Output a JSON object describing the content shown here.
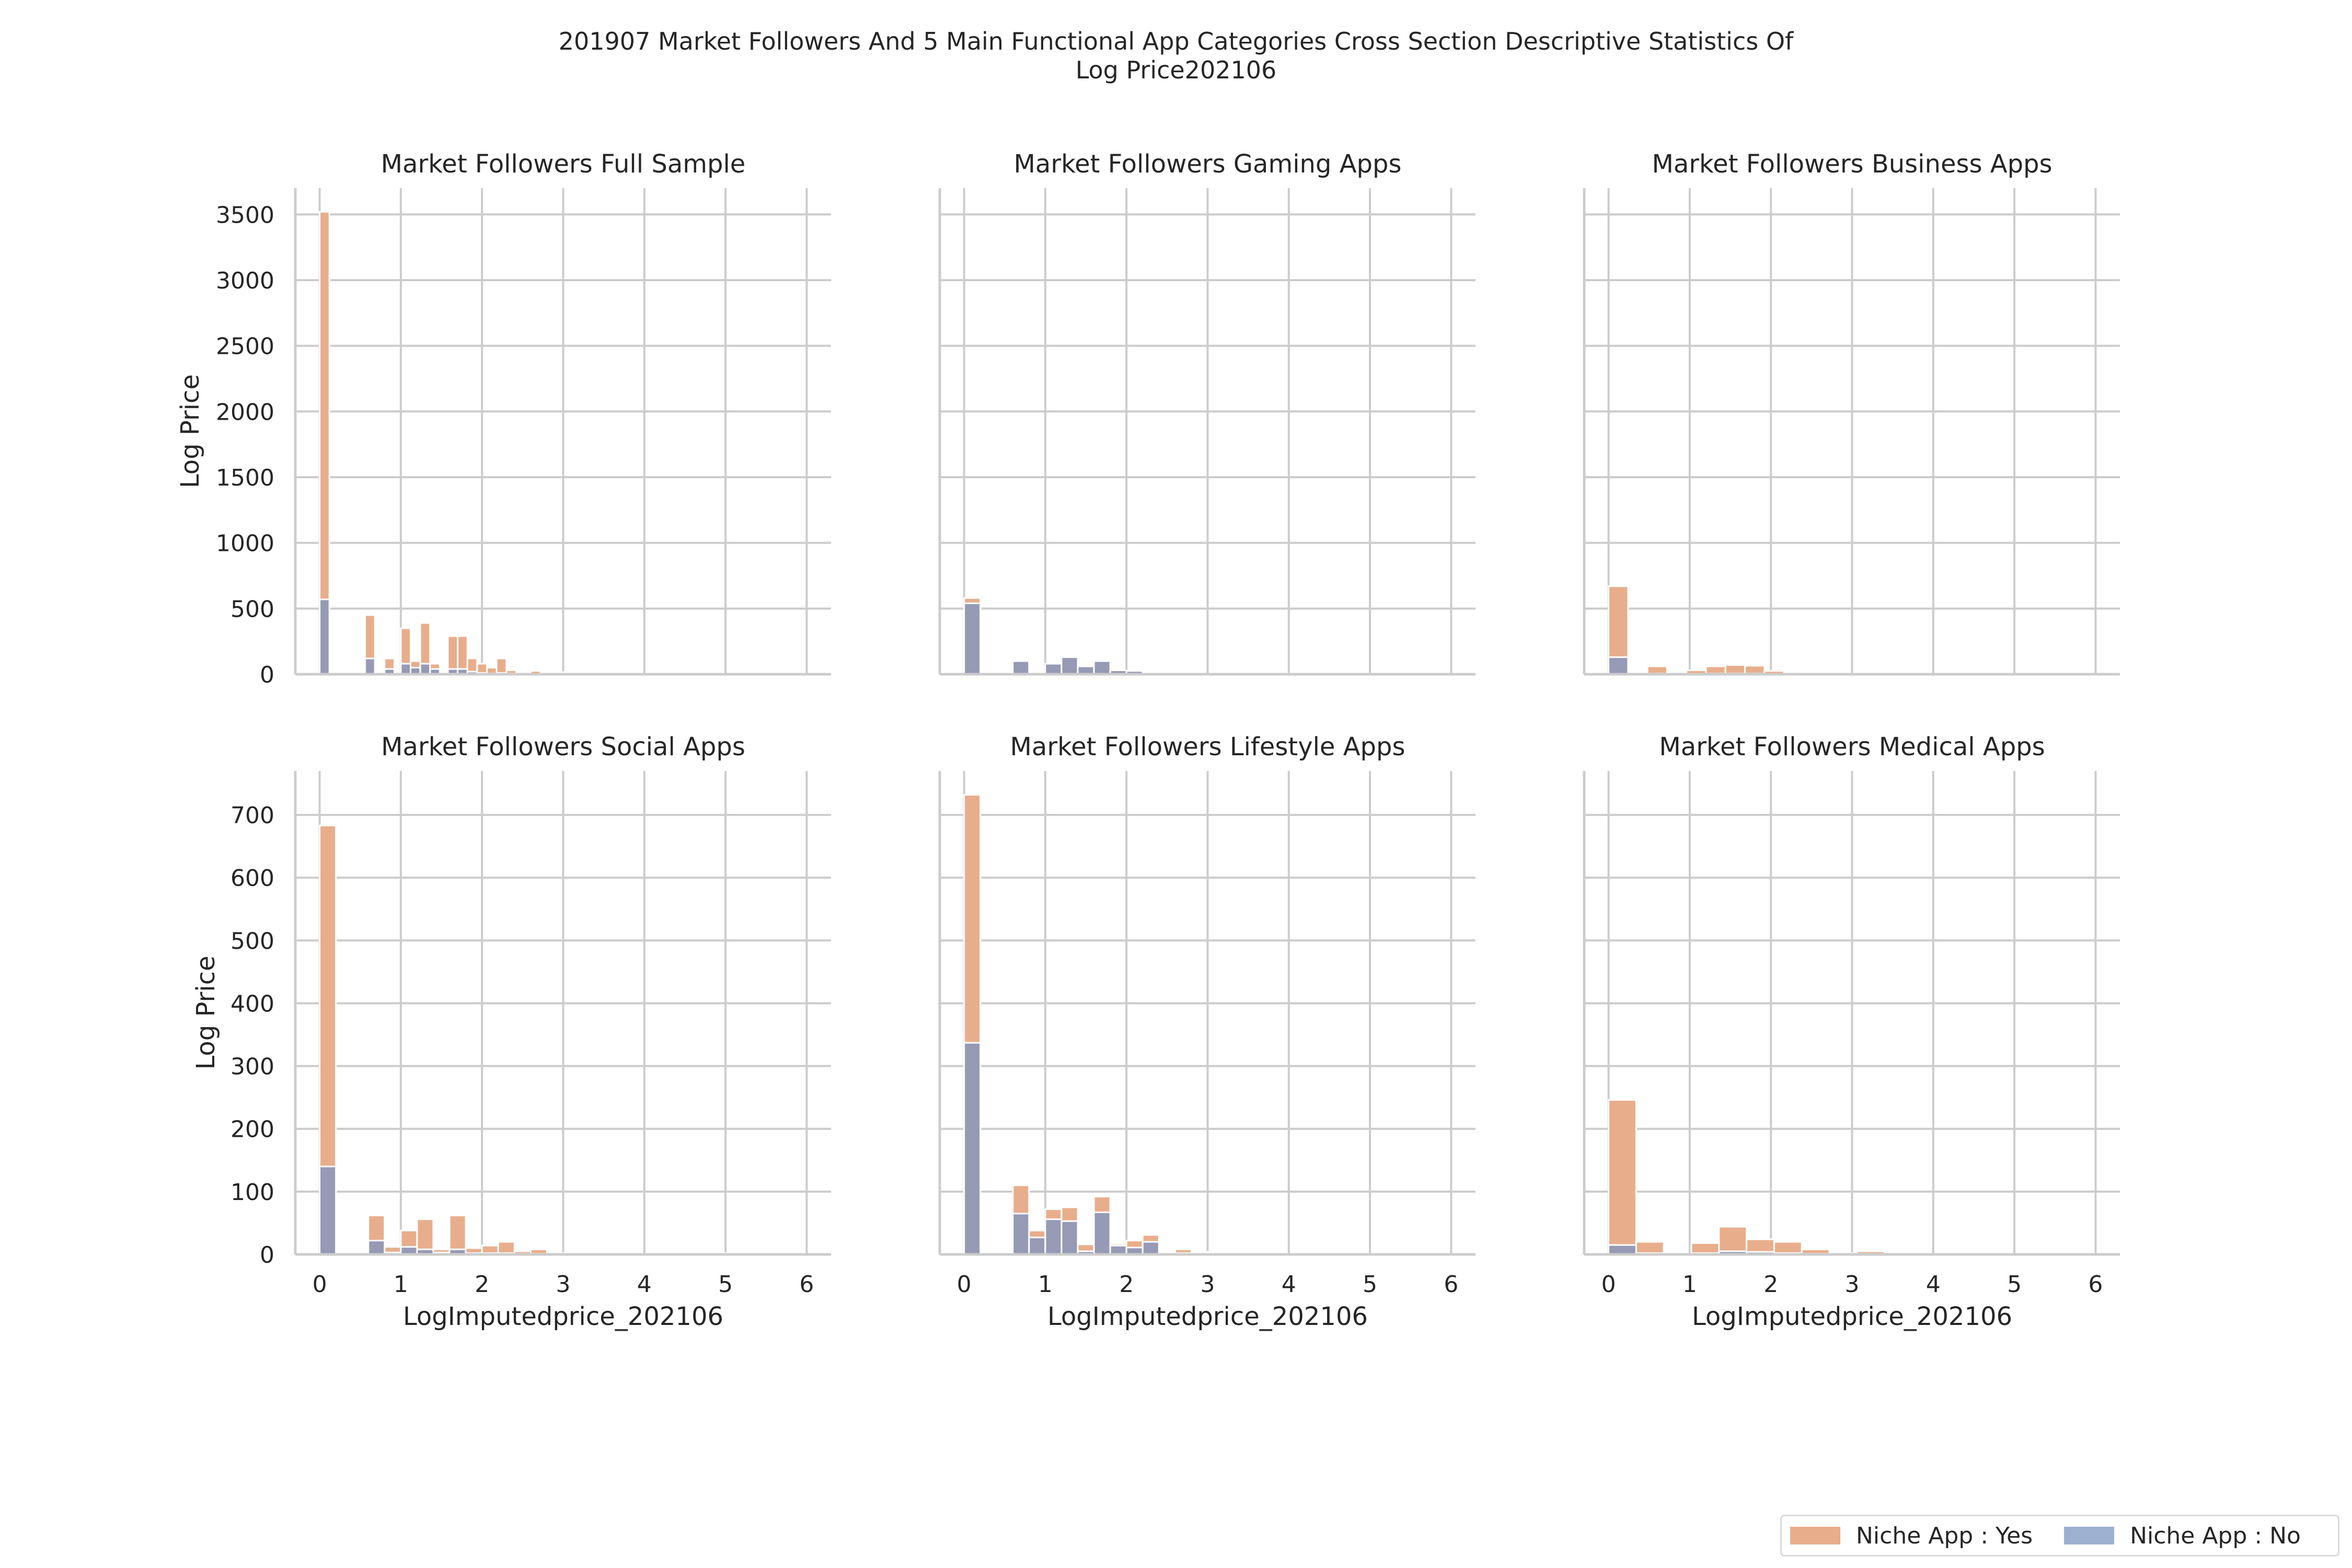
{
  "title": "201907 Market Followers And 5 Main Functional App Categories Cross Section Descriptive Statistics Of Log Price202106",
  "colors": {
    "yes": "#e8ae8c",
    "no": "#8d98b8",
    "grid": "#cccccc",
    "text": "#262626"
  },
  "legend": {
    "items": [
      {
        "label": "Niche App : Yes",
        "color": "#e8ae8c"
      },
      {
        "label": "Niche App : No",
        "color": "#9eb0d0"
      }
    ]
  },
  "chart_data": [
    {
      "type": "histogram-stacked",
      "title": "Market Followers Full Sample",
      "xlabel": "",
      "ylabel": "Log Price",
      "xlim": [
        -0.3,
        6.3
      ],
      "ylim": [
        0,
        3700
      ],
      "xticks": [
        0,
        1,
        2,
        3,
        4,
        5,
        6
      ],
      "yticks": [
        0,
        500,
        1000,
        1500,
        2000,
        2500,
        3000,
        3500
      ],
      "show_x_ticklabels": false,
      "show_y_ticklabels": true,
      "bins": [
        {
          "x0": 0.0,
          "x1": 0.12,
          "yes": 3520,
          "no": 570
        },
        {
          "x0": 0.56,
          "x1": 0.68,
          "yes": 450,
          "no": 120
        },
        {
          "x0": 0.8,
          "x1": 0.92,
          "yes": 120,
          "no": 40
        },
        {
          "x0": 1.0,
          "x1": 1.12,
          "yes": 350,
          "no": 80
        },
        {
          "x0": 1.12,
          "x1": 1.24,
          "yes": 100,
          "no": 50
        },
        {
          "x0": 1.24,
          "x1": 1.36,
          "yes": 390,
          "no": 80
        },
        {
          "x0": 1.36,
          "x1": 1.48,
          "yes": 80,
          "no": 40
        },
        {
          "x0": 1.58,
          "x1": 1.7,
          "yes": 290,
          "no": 40
        },
        {
          "x0": 1.7,
          "x1": 1.82,
          "yes": 290,
          "no": 40
        },
        {
          "x0": 1.82,
          "x1": 1.94,
          "yes": 120,
          "no": 20
        },
        {
          "x0": 1.94,
          "x1": 2.06,
          "yes": 80,
          "no": 10
        },
        {
          "x0": 2.06,
          "x1": 2.18,
          "yes": 50,
          "no": 5
        },
        {
          "x0": 2.18,
          "x1": 2.3,
          "yes": 120,
          "no": 10
        },
        {
          "x0": 2.3,
          "x1": 2.42,
          "yes": 30,
          "no": 5
        },
        {
          "x0": 2.6,
          "x1": 2.72,
          "yes": 25,
          "no": 3
        },
        {
          "x0": 2.9,
          "x1": 3.02,
          "yes": 15,
          "no": 2
        }
      ]
    },
    {
      "type": "histogram-stacked",
      "title": "Market Followers Gaming Apps",
      "xlabel": "",
      "ylabel": "",
      "xlim": [
        -0.3,
        6.3
      ],
      "ylim": [
        0,
        3700
      ],
      "xticks": [
        0,
        1,
        2,
        3,
        4,
        5,
        6
      ],
      "yticks": [
        0,
        500,
        1000,
        1500,
        2000,
        2500,
        3000,
        3500
      ],
      "show_x_ticklabels": false,
      "show_y_ticklabels": false,
      "bins": [
        {
          "x0": 0.0,
          "x1": 0.2,
          "yes": 580,
          "no": 540
        },
        {
          "x0": 0.6,
          "x1": 0.8,
          "yes": 110,
          "no": 100
        },
        {
          "x0": 1.0,
          "x1": 1.2,
          "yes": 80,
          "no": 80
        },
        {
          "x0": 1.2,
          "x1": 1.4,
          "yes": 130,
          "no": 130
        },
        {
          "x0": 1.4,
          "x1": 1.6,
          "yes": 60,
          "no": 60
        },
        {
          "x0": 1.6,
          "x1": 1.8,
          "yes": 100,
          "no": 100
        },
        {
          "x0": 1.8,
          "x1": 2.0,
          "yes": 30,
          "no": 30
        },
        {
          "x0": 2.0,
          "x1": 2.2,
          "yes": 25,
          "no": 25
        },
        {
          "x0": 2.2,
          "x1": 2.4,
          "yes": 10,
          "no": 10
        }
      ]
    },
    {
      "type": "histogram-stacked",
      "title": "Market Followers Business Apps",
      "xlabel": "",
      "ylabel": "",
      "xlim": [
        -0.3,
        6.3
      ],
      "ylim": [
        0,
        3700
      ],
      "xticks": [
        0,
        1,
        2,
        3,
        4,
        5,
        6
      ],
      "yticks": [
        0,
        500,
        1000,
        1500,
        2000,
        2500,
        3000,
        3500
      ],
      "show_x_ticklabels": false,
      "show_y_ticklabels": false,
      "bins": [
        {
          "x0": 0.0,
          "x1": 0.24,
          "yes": 670,
          "no": 130
        },
        {
          "x0": 0.48,
          "x1": 0.72,
          "yes": 60,
          "no": 5
        },
        {
          "x0": 0.96,
          "x1": 1.2,
          "yes": 30,
          "no": 3
        },
        {
          "x0": 1.2,
          "x1": 1.44,
          "yes": 60,
          "no": 5
        },
        {
          "x0": 1.44,
          "x1": 1.68,
          "yes": 70,
          "no": 5
        },
        {
          "x0": 1.68,
          "x1": 1.92,
          "yes": 65,
          "no": 5
        },
        {
          "x0": 1.92,
          "x1": 2.16,
          "yes": 25,
          "no": 2
        },
        {
          "x0": 2.16,
          "x1": 2.4,
          "yes": 8,
          "no": 1
        }
      ]
    },
    {
      "type": "histogram-stacked",
      "title": "Market Followers Social Apps",
      "xlabel": "LogImputedprice_202106",
      "ylabel": "Log Price",
      "xlim": [
        -0.3,
        6.3
      ],
      "ylim": [
        0,
        770
      ],
      "xticks": [
        0,
        1,
        2,
        3,
        4,
        5,
        6
      ],
      "yticks": [
        0,
        100,
        200,
        300,
        400,
        500,
        600,
        700
      ],
      "show_x_ticklabels": true,
      "show_y_ticklabels": true,
      "bins": [
        {
          "x0": 0.0,
          "x1": 0.2,
          "yes": 683,
          "no": 140
        },
        {
          "x0": 0.6,
          "x1": 0.8,
          "yes": 62,
          "no": 22
        },
        {
          "x0": 0.8,
          "x1": 1.0,
          "yes": 12,
          "no": 3
        },
        {
          "x0": 1.0,
          "x1": 1.2,
          "yes": 38,
          "no": 12
        },
        {
          "x0": 1.2,
          "x1": 1.4,
          "yes": 56,
          "no": 8
        },
        {
          "x0": 1.4,
          "x1": 1.6,
          "yes": 8,
          "no": 3
        },
        {
          "x0": 1.6,
          "x1": 1.8,
          "yes": 62,
          "no": 8
        },
        {
          "x0": 1.8,
          "x1": 2.0,
          "yes": 10,
          "no": 2
        },
        {
          "x0": 2.0,
          "x1": 2.2,
          "yes": 14,
          "no": 2
        },
        {
          "x0": 2.2,
          "x1": 2.4,
          "yes": 20,
          "no": 2
        },
        {
          "x0": 2.4,
          "x1": 2.6,
          "yes": 5,
          "no": 1
        },
        {
          "x0": 2.6,
          "x1": 2.8,
          "yes": 8,
          "no": 1
        },
        {
          "x0": 2.8,
          "x1": 3.0,
          "yes": 2,
          "no": 0
        },
        {
          "x0": 4.8,
          "x1": 5.0,
          "yes": 2,
          "no": 0
        }
      ]
    },
    {
      "type": "histogram-stacked",
      "title": "Market Followers Lifestyle Apps",
      "xlabel": "LogImputedprice_202106",
      "ylabel": "",
      "xlim": [
        -0.3,
        6.3
      ],
      "ylim": [
        0,
        770
      ],
      "xticks": [
        0,
        1,
        2,
        3,
        4,
        5,
        6
      ],
      "yticks": [
        0,
        100,
        200,
        300,
        400,
        500,
        600,
        700
      ],
      "show_x_ticklabels": true,
      "show_y_ticklabels": false,
      "bins": [
        {
          "x0": 0.0,
          "x1": 0.2,
          "yes": 732,
          "no": 337
        },
        {
          "x0": 0.6,
          "x1": 0.8,
          "yes": 110,
          "no": 65
        },
        {
          "x0": 0.8,
          "x1": 1.0,
          "yes": 38,
          "no": 27
        },
        {
          "x0": 1.0,
          "x1": 1.2,
          "yes": 72,
          "no": 56
        },
        {
          "x0": 1.2,
          "x1": 1.4,
          "yes": 75,
          "no": 53
        },
        {
          "x0": 1.4,
          "x1": 1.6,
          "yes": 16,
          "no": 5
        },
        {
          "x0": 1.6,
          "x1": 1.8,
          "yes": 92,
          "no": 67
        },
        {
          "x0": 1.8,
          "x1": 2.0,
          "yes": 17,
          "no": 14
        },
        {
          "x0": 2.0,
          "x1": 2.2,
          "yes": 22,
          "no": 11
        },
        {
          "x0": 2.2,
          "x1": 2.4,
          "yes": 31,
          "no": 20
        },
        {
          "x0": 2.4,
          "x1": 2.6,
          "yes": 4,
          "no": 2
        },
        {
          "x0": 2.6,
          "x1": 2.8,
          "yes": 8,
          "no": 2
        },
        {
          "x0": 3.0,
          "x1": 3.2,
          "yes": 4,
          "no": 3
        },
        {
          "x0": 3.2,
          "x1": 3.4,
          "yes": 2,
          "no": 0
        }
      ]
    },
    {
      "type": "histogram-stacked",
      "title": "Market Followers Medical Apps",
      "xlabel": "LogImputedprice_202106",
      "ylabel": "",
      "xlim": [
        -0.3,
        6.3
      ],
      "ylim": [
        0,
        770
      ],
      "xticks": [
        0,
        1,
        2,
        3,
        4,
        5,
        6
      ],
      "yticks": [
        0,
        100,
        200,
        300,
        400,
        500,
        600,
        700
      ],
      "show_x_ticklabels": true,
      "show_y_ticklabels": false,
      "bins": [
        {
          "x0": 0.0,
          "x1": 0.34,
          "yes": 246,
          "no": 15
        },
        {
          "x0": 0.34,
          "x1": 0.68,
          "yes": 20,
          "no": 2
        },
        {
          "x0": 1.02,
          "x1": 1.36,
          "yes": 18,
          "no": 2
        },
        {
          "x0": 1.36,
          "x1": 1.7,
          "yes": 44,
          "no": 5
        },
        {
          "x0": 1.7,
          "x1": 2.04,
          "yes": 24,
          "no": 4
        },
        {
          "x0": 2.04,
          "x1": 2.38,
          "yes": 20,
          "no": 2
        },
        {
          "x0": 2.38,
          "x1": 2.72,
          "yes": 8,
          "no": 1
        },
        {
          "x0": 2.72,
          "x1": 3.06,
          "yes": 2,
          "no": 0
        },
        {
          "x0": 3.06,
          "x1": 3.4,
          "yes": 5,
          "no": 1
        },
        {
          "x0": 3.4,
          "x1": 3.74,
          "yes": 2,
          "no": 0
        }
      ]
    }
  ]
}
